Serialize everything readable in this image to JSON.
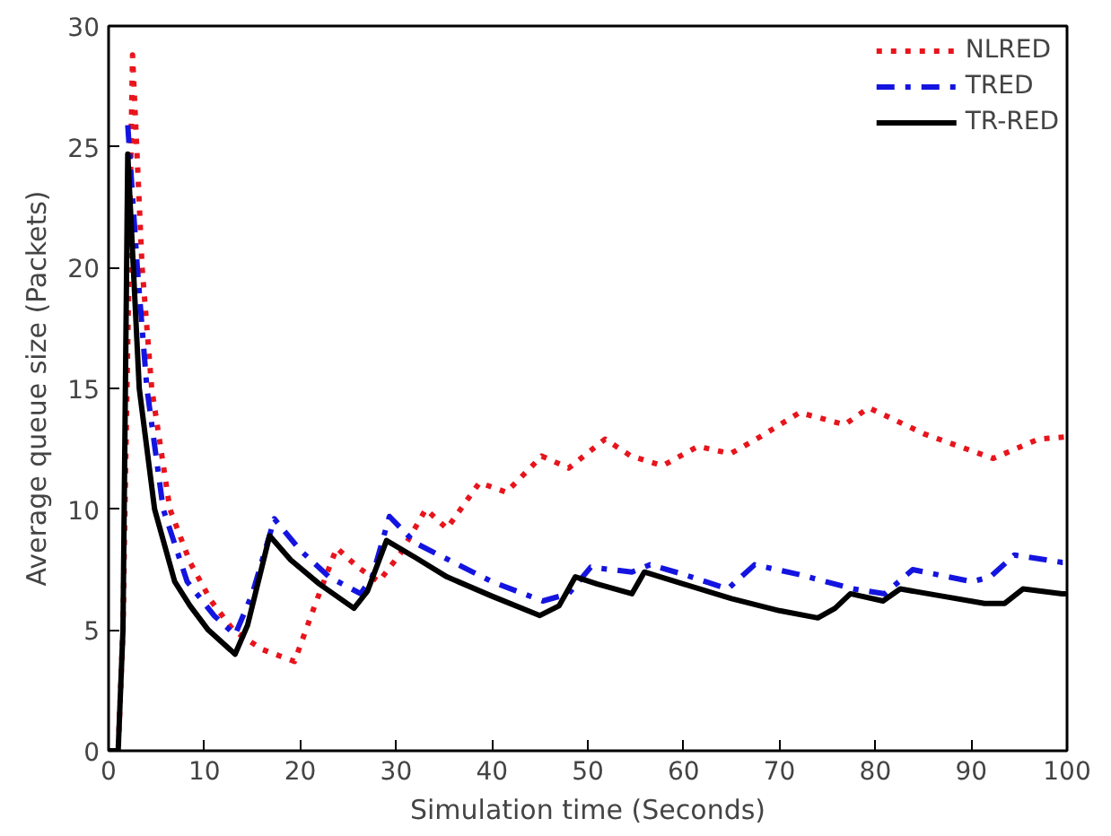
{
  "chart_data": {
    "type": "line",
    "xlabel": "Simulation time (Seconds)",
    "ylabel": "Average queue size (Packets)",
    "xlim": [
      0,
      100
    ],
    "ylim": [
      0,
      30
    ],
    "xticks": [
      0,
      10,
      20,
      30,
      40,
      50,
      60,
      70,
      80,
      90,
      100
    ],
    "yticks": [
      0,
      5,
      10,
      15,
      20,
      25,
      30
    ],
    "grid": false,
    "legend": "top right",
    "marker": "none",
    "series": [
      {
        "name": "NLRED",
        "color": "#e8141c",
        "line_style": "dotted",
        "x": [
          0,
          1,
          1.5,
          2.5,
          3.5,
          4.5,
          6.4,
          8.5,
          10.7,
          13,
          16,
          19.4,
          21.5,
          23.8,
          26,
          28.2,
          30.5,
          33.1,
          35.3,
          38.7,
          41.5,
          45.2,
          48,
          51.8,
          54.5,
          57.8,
          61.5,
          64.9,
          68,
          72.1,
          76.8,
          79.3,
          85.2,
          92.3,
          97,
          100
        ],
        "values": [
          0,
          0,
          5,
          28.8,
          20,
          15,
          10,
          7.8,
          6.2,
          5.0,
          4.2,
          3.7,
          6.0,
          8.4,
          7.6,
          7.0,
          8.2,
          10.0,
          9.2,
          11.1,
          10.7,
          12.2,
          11.7,
          12.9,
          12.2,
          11.8,
          12.6,
          12.3,
          13.0,
          14.0,
          13.5,
          14.2,
          13.1,
          12.1,
          12.9,
          13.0
        ]
      },
      {
        "name": "TRED",
        "color": "#1414e0",
        "line_style": "dashdot",
        "x": [
          2.0,
          3,
          4.0,
          5.7,
          8.2,
          11,
          13.2,
          15,
          17.3,
          20,
          23,
          26.3,
          27.5,
          29.3,
          32,
          36,
          40,
          45.3,
          48,
          50.3,
          54.6,
          56.5,
          60,
          64.6,
          67.4,
          72,
          77.7,
          81,
          83.9,
          90.1,
          92,
          94.5,
          99.5,
          100
        ],
        "values": [
          25.9,
          20,
          15,
          10,
          7,
          5.6,
          4.8,
          6.5,
          9.6,
          8.3,
          7.2,
          6.5,
          7.2,
          9.7,
          8.6,
          7.8,
          7.0,
          6.2,
          6.5,
          7.6,
          7.4,
          7.7,
          7.3,
          6.7,
          7.7,
          7.3,
          6.7,
          6.5,
          7.5,
          7.0,
          7.2,
          8.1,
          7.8,
          7.8
        ]
      },
      {
        "name": "TR-RED",
        "color": "#000000",
        "line_style": "solid",
        "x": [
          0,
          1,
          1.5,
          2.0,
          3.2,
          4.8,
          6.9,
          8.5,
          10.4,
          13.2,
          14.5,
          16.8,
          19,
          22,
          25.6,
          27,
          29,
          32,
          35.3,
          40,
          45,
          47,
          48.7,
          51,
          54.6,
          55.9,
          60,
          65,
          70,
          74,
          75.8,
          77.4,
          80.8,
          82.6,
          87,
          91.4,
          93.5,
          95.4,
          99.5,
          100
        ],
        "values": [
          0,
          0,
          5,
          24.7,
          15,
          10,
          7,
          6,
          5,
          4.0,
          5.2,
          8.9,
          7.9,
          6.9,
          5.9,
          6.6,
          8.7,
          8.0,
          7.2,
          6.4,
          5.6,
          6.0,
          7.2,
          6.9,
          6.5,
          7.4,
          6.9,
          6.3,
          5.8,
          5.5,
          5.9,
          6.5,
          6.2,
          6.7,
          6.4,
          6.1,
          6.1,
          6.7,
          6.5,
          6.5
        ]
      }
    ]
  }
}
